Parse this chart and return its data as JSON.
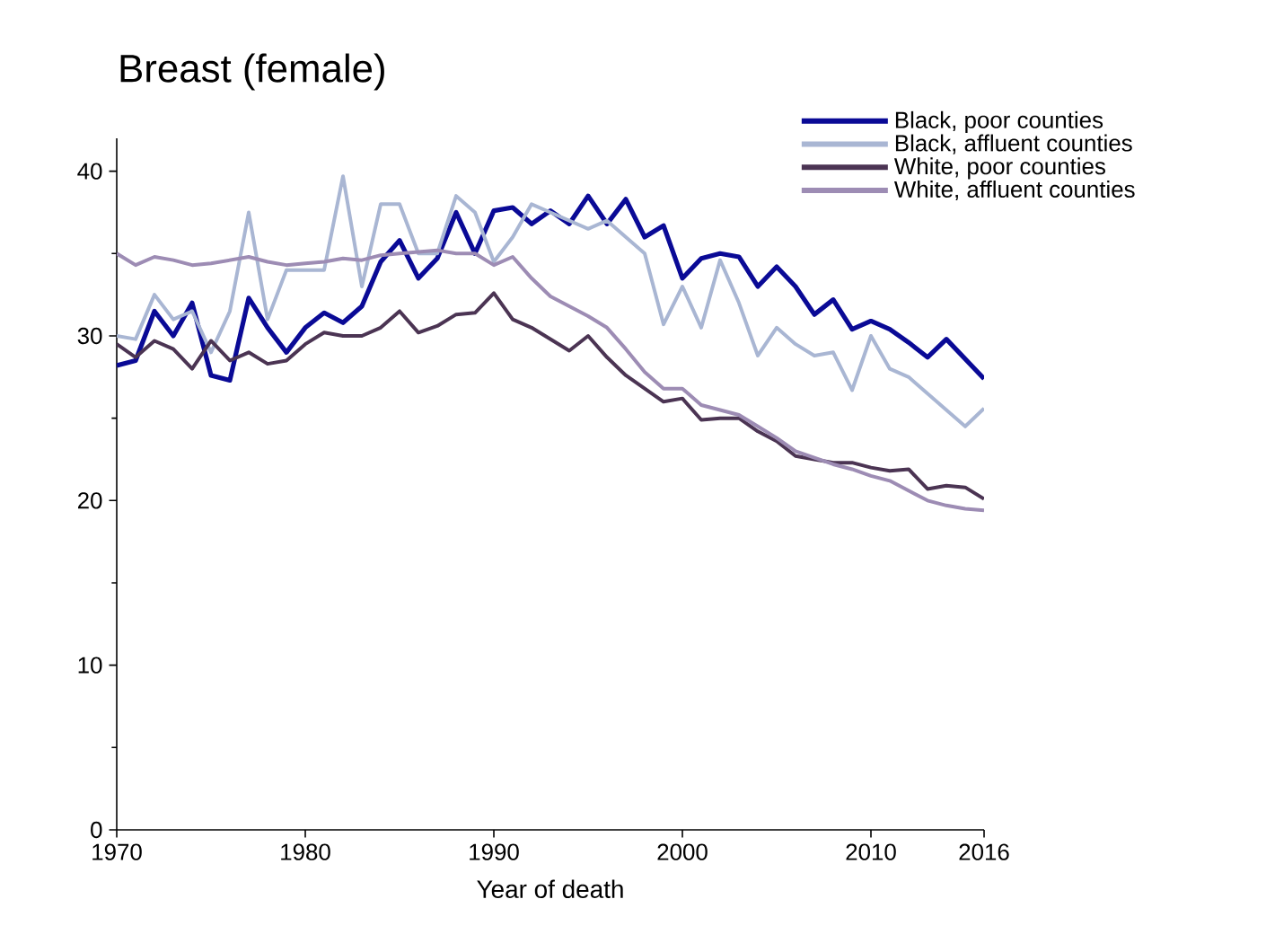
{
  "chart_data": {
    "type": "line",
    "title": "Breast (female)",
    "xlabel": "Year of death",
    "x": [
      1970,
      1971,
      1972,
      1973,
      1974,
      1975,
      1976,
      1977,
      1978,
      1979,
      1980,
      1981,
      1982,
      1983,
      1984,
      1985,
      1986,
      1987,
      1988,
      1989,
      1990,
      1991,
      1992,
      1993,
      1994,
      1995,
      1996,
      1997,
      1998,
      1999,
      2000,
      2001,
      2002,
      2003,
      2004,
      2005,
      2006,
      2007,
      2008,
      2009,
      2010,
      2011,
      2012,
      2013,
      2014,
      2015,
      2016
    ],
    "series": [
      {
        "name": "Black, poor counties",
        "color": "#0a0a96",
        "values": [
          28.2,
          28.5,
          31.5,
          30,
          32,
          27.6,
          27.3,
          32.3,
          30.5,
          29,
          30.5,
          31.4,
          30.8,
          31.8,
          34.5,
          35.8,
          33.5,
          34.7,
          37.5,
          35,
          37.6,
          37.8,
          36.8,
          37.6,
          36.8,
          38.5,
          36.8,
          38.3,
          36,
          36.7,
          33.5,
          34.7,
          35,
          34.8,
          33,
          34.2,
          33,
          31.3,
          32.2,
          30.4,
          30.9,
          30.4,
          29.6,
          28.7,
          29.8,
          28.6,
          27.4
        ]
      },
      {
        "name": "Black, affluent counties",
        "color": "#a9b6d3",
        "values": [
          30,
          29.8,
          32.5,
          31,
          31.5,
          29,
          31.5,
          37.5,
          31,
          34,
          34,
          34,
          39.7,
          33,
          38,
          38,
          35,
          35,
          38.5,
          37.5,
          34.5,
          36,
          38,
          37.5,
          37,
          36.5,
          37,
          36,
          35,
          30.7,
          33,
          30.5,
          34.6,
          32,
          28.8,
          30.5,
          29.5,
          28.8,
          29,
          26.7,
          30,
          28,
          27.5,
          26.5,
          25.5,
          24.5,
          25.6
        ]
      },
      {
        "name": "White, poor counties",
        "color": "#4b3453",
        "values": [
          29.5,
          28.7,
          29.7,
          29.2,
          28,
          29.7,
          28.5,
          29,
          28.3,
          28.5,
          29.5,
          30.2,
          30,
          30,
          30.5,
          31.5,
          30.2,
          30.6,
          31.3,
          31.4,
          32.6,
          31,
          30.5,
          29.8,
          29.1,
          30,
          28.7,
          27.6,
          26.8,
          26,
          26.2,
          24.9,
          25,
          25,
          24.2,
          23.6,
          22.7,
          22.5,
          22.3,
          22.3,
          22,
          21.8,
          21.9,
          20.7,
          20.9,
          20.8,
          20.1
        ]
      },
      {
        "name": "White, affluent counties",
        "color": "#9d8cb4",
        "values": [
          35,
          34.3,
          34.8,
          34.6,
          34.3,
          34.4,
          34.6,
          34.8,
          34.5,
          34.3,
          34.4,
          34.5,
          34.7,
          34.6,
          34.9,
          35,
          35.1,
          35.2,
          35,
          35,
          34.3,
          34.8,
          33.5,
          32.4,
          31.8,
          31.2,
          30.5,
          29.2,
          27.8,
          26.8,
          26.8,
          25.8,
          25.5,
          25.2,
          24.5,
          23.8,
          23,
          22.6,
          22.2,
          21.9,
          21.5,
          21.2,
          20.6,
          20,
          19.7,
          19.5,
          19.4
        ]
      }
    ],
    "xlim": [
      1970,
      2016
    ],
    "ylim": [
      0,
      42
    ],
    "xticks": [
      1970,
      1980,
      1990,
      2000,
      2010,
      2016
    ],
    "yticks": [
      0,
      10,
      20,
      30,
      40
    ],
    "grid": false,
    "legend": "top right",
    "marker": "none",
    "line_style": "solid"
  }
}
